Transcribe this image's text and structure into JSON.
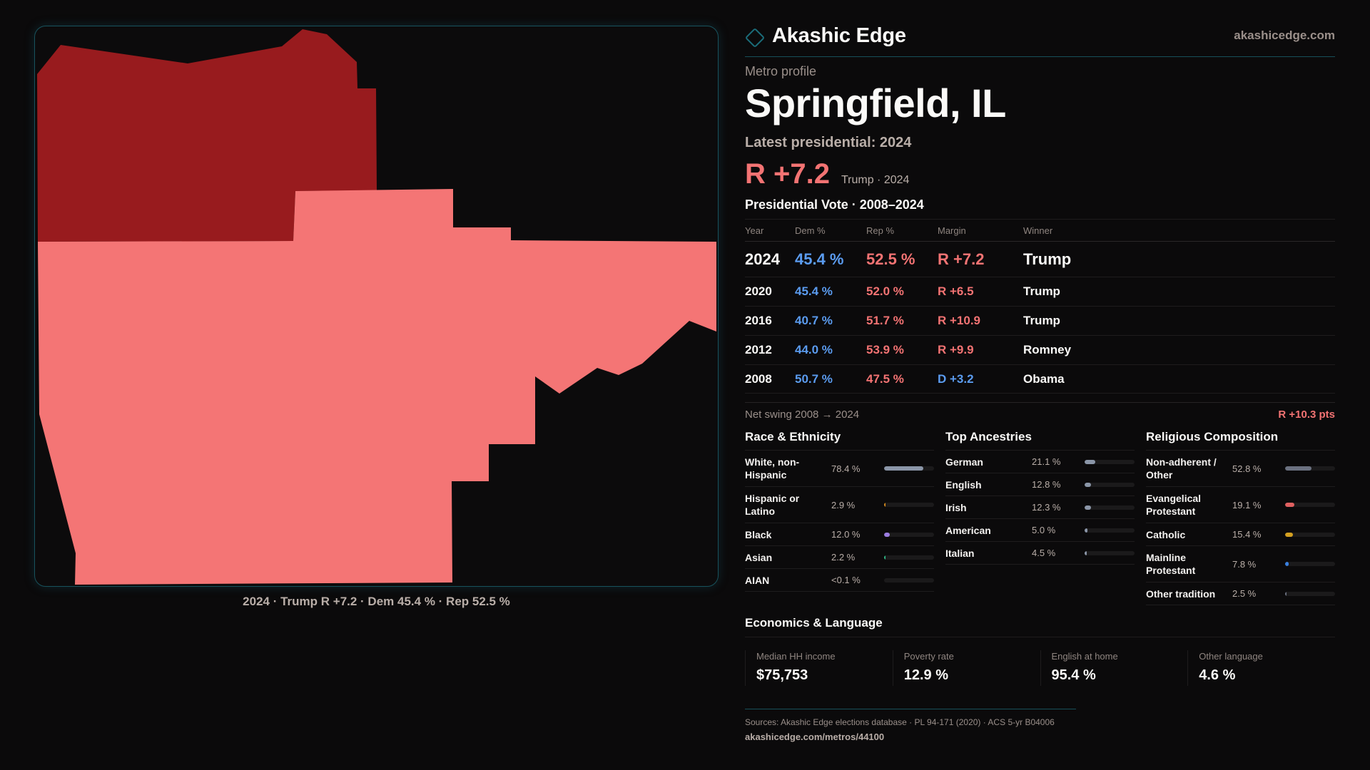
{
  "brand": {
    "name": "Akashic Edge",
    "url": "akashicedge.com",
    "logo_icon": "diamond-outline-icon",
    "accent_color": "#1b6d7a"
  },
  "profile": {
    "eyebrow": "Metro profile",
    "title": "Springfield, IL",
    "latest_label": "Latest presidential: 2024",
    "headline_margin": "R +7.2",
    "headline_sub": "Trump · 2024"
  },
  "map": {
    "caption": "2024 · Trump R +7.2 · Dem 45.4 % · Rep 52.5 %",
    "colors": {
      "strong_rep": "#981b1e",
      "lean_rep": "#f47575",
      "background": "#0c0b0c"
    },
    "regions": [
      {
        "name": "northern-county",
        "shade": "strong_rep"
      },
      {
        "name": "southern-county",
        "shade": "lean_rep"
      }
    ]
  },
  "vote": {
    "title": "Presidential Vote · 2008–2024",
    "columns": [
      "Year",
      "Dem %",
      "Rep %",
      "Margin",
      "Winner"
    ],
    "rows": [
      {
        "year": "2024",
        "dem": "45.4 %",
        "rep": "52.5 %",
        "margin": "R +7.2",
        "party": "R",
        "winner": "Trump"
      },
      {
        "year": "2020",
        "dem": "45.4 %",
        "rep": "52.0 %",
        "margin": "R +6.5",
        "party": "R",
        "winner": "Trump"
      },
      {
        "year": "2016",
        "dem": "40.7 %",
        "rep": "51.7 %",
        "margin": "R +10.9",
        "party": "R",
        "winner": "Trump"
      },
      {
        "year": "2012",
        "dem": "44.0 %",
        "rep": "53.9 %",
        "margin": "R +9.9",
        "party": "R",
        "winner": "Romney"
      },
      {
        "year": "2008",
        "dem": "50.7 %",
        "rep": "47.5 %",
        "margin": "D +3.2",
        "party": "D",
        "winner": "Obama"
      }
    ],
    "swing_label": "Net swing 2008 → 2024",
    "swing_value": "R +10.3 pts",
    "colors": {
      "dem": "#5b9cf0",
      "rep": "#f37373"
    }
  },
  "race": {
    "title": "Race & Ethnicity",
    "items": [
      {
        "label": "White, non-Hispanic",
        "value": "78.4 %",
        "pct": 78.4,
        "color": "#8b96a8",
        "tall": true
      },
      {
        "label": "Hispanic or Latino",
        "value": "2.9 %",
        "pct": 2.9,
        "color": "#d4891c",
        "tall": true
      },
      {
        "label": "Black",
        "value": "12.0 %",
        "pct": 12.0,
        "color": "#9b7ce0",
        "tall": false
      },
      {
        "label": "Asian",
        "value": "2.2 %",
        "pct": 2.2,
        "color": "#2eb584",
        "tall": false
      },
      {
        "label": "AIAN",
        "value": "<0.1 %",
        "pct": 0.05,
        "color": "#6b7180",
        "tall": false
      }
    ]
  },
  "ancestry": {
    "title": "Top Ancestries",
    "items": [
      {
        "label": "German",
        "value": "21.1 %",
        "pct": 21.1,
        "color": "#8b96a8"
      },
      {
        "label": "English",
        "value": "12.8 %",
        "pct": 12.8,
        "color": "#8b96a8"
      },
      {
        "label": "Irish",
        "value": "12.3 %",
        "pct": 12.3,
        "color": "#8b96a8"
      },
      {
        "label": "American",
        "value": "5.0 %",
        "pct": 5.0,
        "color": "#8b96a8"
      },
      {
        "label": "Italian",
        "value": "4.5 %",
        "pct": 4.5,
        "color": "#8b96a8"
      }
    ]
  },
  "religion": {
    "title": "Religious Composition",
    "items": [
      {
        "label": "Non-adherent / Other",
        "value": "52.8 %",
        "pct": 52.8,
        "color": "#6b7180",
        "tall": true
      },
      {
        "label": "Evangelical Protestant",
        "value": "19.1 %",
        "pct": 19.1,
        "color": "#e06060",
        "tall": true
      },
      {
        "label": "Catholic",
        "value": "15.4 %",
        "pct": 15.4,
        "color": "#d4a020",
        "tall": false
      },
      {
        "label": "Mainline Protestant",
        "value": "7.8 %",
        "pct": 7.8,
        "color": "#3a80e0",
        "tall": true
      },
      {
        "label": "Other tradition",
        "value": "2.5 %",
        "pct": 2.5,
        "color": "#6b7180",
        "tall": false
      }
    ]
  },
  "economics": {
    "title": "Economics & Language",
    "stats": [
      {
        "label": "Median HH income",
        "value": "$75,753"
      },
      {
        "label": "Poverty rate",
        "value": "12.9 %"
      },
      {
        "label": "English at home",
        "value": "95.4 %"
      },
      {
        "label": "Other language",
        "value": "4.6 %"
      }
    ]
  },
  "footer": {
    "sources": "Sources: Akashic Edge elections database · PL 94-171 (2020) · ACS 5-yr B04006",
    "url": "akashicedge.com/metros/44100"
  }
}
